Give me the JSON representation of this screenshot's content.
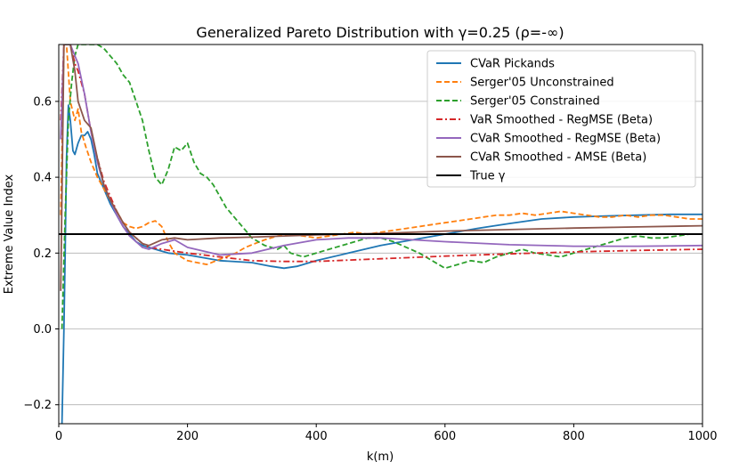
{
  "chart_data": {
    "type": "line",
    "title": "Generalized Pareto Distribution with γ=0.25 (ρ=-∞)",
    "xlabel": "k(m)",
    "ylabel": "Extreme Value Index",
    "xlim": [
      0,
      1000
    ],
    "ylim": [
      -0.25,
      0.75
    ],
    "xticks": [
      0,
      200,
      400,
      600,
      800,
      1000
    ],
    "xtick_labels": [
      "0",
      "200",
      "400",
      "600",
      "800",
      "1000"
    ],
    "yticks": [
      -0.2,
      0.0,
      0.2,
      0.4,
      0.6
    ],
    "ytick_labels": [
      "−0.2",
      "0.0",
      "0.2",
      "0.4",
      "0.6"
    ],
    "grid": "horizontal",
    "legend_position": "top-right",
    "series": [
      {
        "name": "CVaR Pickands",
        "color": "#1f77b4",
        "dash": "solid",
        "x": [
          5,
          8,
          10,
          12,
          15,
          18,
          22,
          25,
          30,
          35,
          40,
          45,
          50,
          55,
          60,
          70,
          80,
          90,
          100,
          110,
          120,
          130,
          140,
          150,
          170,
          200,
          250,
          300,
          330,
          350,
          370,
          400,
          450,
          500,
          550,
          600,
          650,
          700,
          750,
          800,
          850,
          900,
          950,
          1000
        ],
        "values": [
          -0.25,
          0.0,
          0.2,
          0.45,
          0.59,
          0.55,
          0.47,
          0.46,
          0.49,
          0.51,
          0.51,
          0.52,
          0.5,
          0.46,
          0.41,
          0.37,
          0.33,
          0.3,
          0.27,
          0.25,
          0.23,
          0.22,
          0.215,
          0.21,
          0.2,
          0.195,
          0.18,
          0.175,
          0.165,
          0.16,
          0.165,
          0.18,
          0.2,
          0.22,
          0.235,
          0.25,
          0.265,
          0.278,
          0.29,
          0.295,
          0.298,
          0.3,
          0.302,
          0.302
        ]
      },
      {
        "name": "Serger'05 Unconstrained",
        "color": "#ff7f0e",
        "dash": "dashed",
        "x": [
          3,
          8,
          12,
          18,
          25,
          30,
          35,
          42,
          50,
          60,
          70,
          80,
          90,
          100,
          110,
          120,
          130,
          140,
          150,
          160,
          170,
          180,
          190,
          200,
          215,
          230,
          245,
          260,
          275,
          290,
          305,
          320,
          340,
          360,
          380,
          400,
          420,
          440,
          460,
          480,
          500,
          520,
          540,
          560,
          580,
          600,
          620,
          640,
          660,
          680,
          700,
          720,
          740,
          760,
          780,
          800,
          820,
          840,
          860,
          880,
          900,
          920,
          940,
          960,
          980,
          1000
        ],
        "values": [
          0.3,
          0.75,
          0.75,
          0.6,
          0.55,
          0.58,
          0.52,
          0.48,
          0.44,
          0.4,
          0.37,
          0.34,
          0.31,
          0.28,
          0.27,
          0.265,
          0.27,
          0.28,
          0.285,
          0.27,
          0.23,
          0.2,
          0.19,
          0.18,
          0.175,
          0.17,
          0.18,
          0.19,
          0.2,
          0.215,
          0.225,
          0.235,
          0.245,
          0.25,
          0.245,
          0.24,
          0.245,
          0.25,
          0.255,
          0.25,
          0.255,
          0.26,
          0.265,
          0.27,
          0.275,
          0.28,
          0.285,
          0.29,
          0.295,
          0.3,
          0.3,
          0.305,
          0.3,
          0.305,
          0.31,
          0.305,
          0.3,
          0.295,
          0.295,
          0.3,
          0.295,
          0.3,
          0.3,
          0.295,
          0.29,
          0.29
        ]
      },
      {
        "name": "Serger'05 Constrained",
        "color": "#2ca02c",
        "dash": "dashed",
        "x": [
          5,
          10,
          15,
          20,
          25,
          30,
          40,
          50,
          60,
          70,
          80,
          90,
          100,
          110,
          120,
          130,
          140,
          150,
          160,
          170,
          180,
          190,
          200,
          210,
          220,
          230,
          240,
          250,
          260,
          270,
          280,
          290,
          300,
          310,
          320,
          330,
          340,
          350,
          360,
          380,
          400,
          420,
          440,
          460,
          480,
          500,
          520,
          540,
          560,
          580,
          600,
          620,
          640,
          660,
          680,
          700,
          720,
          740,
          760,
          780,
          800,
          820,
          840,
          860,
          880,
          900,
          920,
          940,
          960,
          980,
          1000
        ],
        "values": [
          0.0,
          0.3,
          0.55,
          0.65,
          0.72,
          0.75,
          0.75,
          0.75,
          0.75,
          0.74,
          0.72,
          0.7,
          0.67,
          0.65,
          0.6,
          0.55,
          0.47,
          0.4,
          0.38,
          0.42,
          0.48,
          0.47,
          0.49,
          0.44,
          0.41,
          0.4,
          0.38,
          0.35,
          0.32,
          0.3,
          0.28,
          0.26,
          0.24,
          0.23,
          0.22,
          0.215,
          0.21,
          0.22,
          0.2,
          0.19,
          0.2,
          0.21,
          0.22,
          0.23,
          0.24,
          0.24,
          0.23,
          0.215,
          0.2,
          0.18,
          0.16,
          0.17,
          0.18,
          0.175,
          0.19,
          0.2,
          0.21,
          0.2,
          0.195,
          0.19,
          0.2,
          0.21,
          0.22,
          0.23,
          0.24,
          0.245,
          0.24,
          0.24,
          0.245,
          0.25,
          0.25
        ]
      },
      {
        "name": "VaR Smoothed - RegMSE (Beta)",
        "color": "#d62728",
        "dash": "dashdot",
        "x": [
          3,
          8,
          12,
          18,
          25,
          30,
          40,
          50,
          60,
          70,
          80,
          90,
          100,
          110,
          120,
          130,
          140,
          160,
          180,
          200,
          250,
          300,
          350,
          400,
          500,
          600,
          700,
          800,
          900,
          1000
        ],
        "values": [
          0.55,
          0.75,
          0.75,
          0.75,
          0.7,
          0.68,
          0.62,
          0.52,
          0.45,
          0.39,
          0.35,
          0.31,
          0.28,
          0.255,
          0.24,
          0.225,
          0.215,
          0.21,
          0.205,
          0.2,
          0.19,
          0.18,
          0.178,
          0.178,
          0.185,
          0.192,
          0.198,
          0.203,
          0.207,
          0.21
        ]
      },
      {
        "name": "CVaR Smoothed - RegMSE (Beta)",
        "color": "#9467bd",
        "dash": "solid",
        "x": [
          3,
          8,
          12,
          18,
          25,
          30,
          40,
          50,
          60,
          70,
          80,
          90,
          100,
          110,
          120,
          130,
          140,
          160,
          180,
          200,
          250,
          300,
          350,
          400,
          450,
          500,
          550,
          600,
          700,
          800,
          900,
          1000
        ],
        "values": [
          0.5,
          0.75,
          0.75,
          0.75,
          0.72,
          0.7,
          0.62,
          0.52,
          0.44,
          0.38,
          0.34,
          0.3,
          0.27,
          0.245,
          0.23,
          0.215,
          0.21,
          0.225,
          0.235,
          0.215,
          0.195,
          0.2,
          0.22,
          0.235,
          0.24,
          0.24,
          0.235,
          0.23,
          0.222,
          0.218,
          0.218,
          0.22
        ]
      },
      {
        "name": "CVaR Smoothed - AMSE (Beta)",
        "color": "#8c564b",
        "dash": "solid",
        "x": [
          3,
          8,
          12,
          18,
          25,
          30,
          40,
          50,
          60,
          70,
          80,
          90,
          100,
          110,
          120,
          130,
          140,
          160,
          180,
          200,
          250,
          300,
          350,
          400,
          500,
          600,
          700,
          800,
          900,
          1000
        ],
        "values": [
          0.1,
          0.75,
          0.75,
          0.75,
          0.68,
          0.6,
          0.55,
          0.53,
          0.45,
          0.38,
          0.34,
          0.31,
          0.28,
          0.255,
          0.24,
          0.225,
          0.22,
          0.235,
          0.24,
          0.235,
          0.24,
          0.242,
          0.245,
          0.248,
          0.252,
          0.258,
          0.262,
          0.266,
          0.269,
          0.272
        ]
      },
      {
        "name": "True γ",
        "color": "#000000",
        "dash": "solid",
        "x": [
          0,
          1000
        ],
        "values": [
          0.25,
          0.25
        ]
      }
    ]
  }
}
